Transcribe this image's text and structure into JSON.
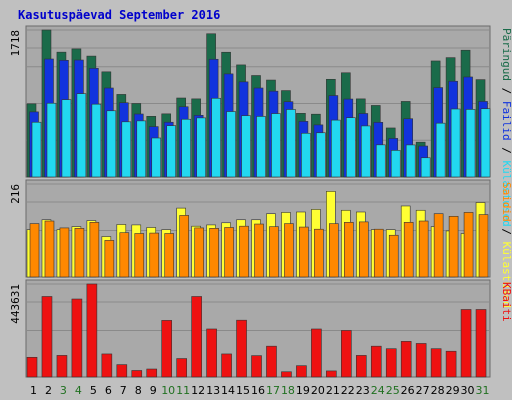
{
  "title": "Kasutuspäevad September 2016",
  "colors": {
    "background": "#c0c0c0",
    "panel": "#a9a9a9",
    "title": "#0000cc",
    "grid": "#8a8a8a",
    "pages_dark_green": "#1a6b4a",
    "files_blue": "#1133dd",
    "hits_cyan": "#22d8f0",
    "visits_yellow": "#ffff33",
    "sites_orange": "#ff8800",
    "kbytes_red": "#ee1111",
    "weekend_day_label": "#207020",
    "weekday_day_label": "#000000"
  },
  "chart_data": [
    {
      "type": "bar",
      "panel": "top",
      "ymax_label": "1718",
      "right_label_parts": [
        {
          "text": "Päringud",
          "color": "#1a6b4a"
        },
        {
          "text": " / ",
          "color": "#000000"
        },
        {
          "text": "Failid",
          "color": "#1133dd"
        },
        {
          "text": " / ",
          "color": "#000000"
        },
        {
          "text": "Külastused",
          "color": "#22d8f0"
        }
      ],
      "ymax": 1718,
      "series": [
        {
          "name": "Päringud",
          "color": "#1a6b4a",
          "values": [
            855,
            1718,
            1459,
            1497,
            1413,
            1229,
            965,
            859,
            709,
            738,
            923,
            913,
            1674,
            1458,
            1310,
            1186,
            1133,
            1010,
            744,
            734,
            1142,
            1218,
            913,
            836,
            573,
            883,
            407,
            1356,
            1395,
            1482,
            1138
          ]
        },
        {
          "name": "Failid",
          "color": "#1133dd",
          "values": [
            761,
            1379,
            1364,
            1367,
            1270,
            1040,
            868,
            736,
            589,
            640,
            821,
            721,
            1376,
            1205,
            1112,
            1040,
            1003,
            880,
            650,
            609,
            952,
            911,
            742,
            639,
            451,
            681,
            362,
            1045,
            1119,
            1169,
            883
          ]
        },
        {
          "name": "Külastused",
          "color": "#22d8f0",
          "values": [
            640,
            862,
            904,
            974,
            851,
            774,
            645,
            656,
            456,
            600,
            675,
            691,
            920,
            765,
            717,
            708,
            741,
            789,
            511,
            517,
            665,
            693,
            597,
            376,
            311,
            375,
            225,
            629,
            795,
            790,
            798
          ]
        }
      ]
    },
    {
      "type": "bar",
      "panel": "middle",
      "ymax_label": "216",
      "right_label_parts": [
        {
          "text": "Saidid",
          "color": "#ff8800"
        },
        {
          "text": " / ",
          "color": "#000000"
        },
        {
          "text": "Külastused",
          "color": "#ffff33"
        }
      ],
      "ymax": 216,
      "series": [
        {
          "name": "Külastused",
          "color": "#ffff33",
          "values": [
            110,
            133,
            110,
            117,
            131,
            94,
            122,
            121,
            115,
            110,
            160,
            118,
            121,
            126,
            133,
            133,
            147,
            150,
            151,
            157,
            199,
            155,
            151,
            110,
            110,
            165,
            155,
            117,
            107,
            101,
            173
          ]
        },
        {
          "name": "Saidid",
          "color": "#ff8800",
          "values": [
            124,
            130,
            114,
            113,
            127,
            85,
            103,
            101,
            102,
            101,
            143,
            114,
            113,
            115,
            118,
            123,
            117,
            124,
            116,
            111,
            124,
            127,
            128,
            111,
            97,
            127,
            130,
            147,
            141,
            150,
            145
          ]
        }
      ]
    },
    {
      "type": "bar",
      "panel": "bottom",
      "ymax_label": "443631",
      "right_label_parts": [
        {
          "text": "KBaiti",
          "color": "#ee1111"
        }
      ],
      "ymax": 443631,
      "series": [
        {
          "name": "KBaiti",
          "color": "#ee1111",
          "values": [
            94000,
            384000,
            103000,
            372000,
            443631,
            110000,
            59000,
            31000,
            38000,
            270000,
            88000,
            384000,
            229000,
            110000,
            271000,
            102000,
            147000,
            25000,
            54000,
            229000,
            29000,
            222000,
            103000,
            147000,
            135000,
            170000,
            160000,
            135000,
            123000,
            322000,
            322000
          ]
        }
      ]
    }
  ],
  "days": [
    "1",
    "2",
    "3",
    "4",
    "5",
    "6",
    "7",
    "8",
    "9",
    "10",
    "11",
    "12",
    "13",
    "14",
    "15",
    "16",
    "17",
    "18",
    "19",
    "20",
    "21",
    "22",
    "23",
    "24",
    "25",
    "26",
    "27",
    "28",
    "29",
    "30",
    "31"
  ],
  "weekend_days": [
    3,
    4,
    10,
    11,
    17,
    18,
    24,
    25,
    31
  ]
}
